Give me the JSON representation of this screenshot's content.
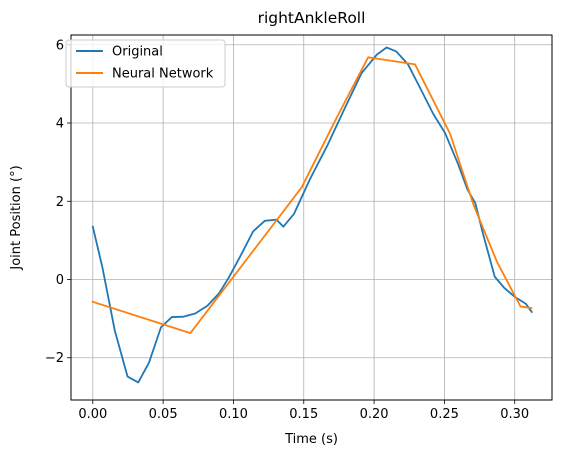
{
  "chart_data": {
    "type": "line",
    "title": "rightAnkleRoll",
    "xlabel": "Time (s)",
    "ylabel": "Joint Position (°)",
    "xlim": [
      -0.0155,
      0.3265
    ],
    "ylim": [
      -3.08,
      6.25
    ],
    "xticks": [
      0.0,
      0.05,
      0.1,
      0.15,
      0.2,
      0.25,
      0.3
    ],
    "xtick_labels": [
      "0.00",
      "0.05",
      "0.10",
      "0.15",
      "0.20",
      "0.25",
      "0.30"
    ],
    "yticks": [
      -2,
      0,
      2,
      4,
      6
    ],
    "ytick_labels": [
      "−2",
      "0",
      "2",
      "4",
      "6"
    ],
    "grid": true,
    "legend_position": "upper-left",
    "series": [
      {
        "name": "Original",
        "color": "#1f77b4",
        "x": [
          0.0,
          0.0069,
          0.0156,
          0.0247,
          0.0323,
          0.0399,
          0.0485,
          0.0562,
          0.0645,
          0.0728,
          0.0815,
          0.0898,
          0.0967,
          0.1057,
          0.114,
          0.1223,
          0.1306,
          0.1355,
          0.1431,
          0.1542,
          0.1667,
          0.1784,
          0.191,
          0.202,
          0.2089,
          0.2158,
          0.2241,
          0.2331,
          0.2421,
          0.2504,
          0.2595,
          0.2664,
          0.272,
          0.2775,
          0.2858,
          0.2927,
          0.3003,
          0.3079,
          0.3121
        ],
        "y": [
          1.35,
          0.3,
          -1.3,
          -2.48,
          -2.63,
          -2.13,
          -1.22,
          -0.96,
          -0.95,
          -0.87,
          -0.67,
          -0.35,
          0.05,
          0.65,
          1.23,
          1.5,
          1.53,
          1.35,
          1.68,
          2.55,
          3.42,
          4.32,
          5.27,
          5.75,
          5.93,
          5.83,
          5.5,
          4.87,
          4.23,
          3.75,
          2.97,
          2.3,
          1.95,
          1.16,
          0.07,
          -0.22,
          -0.45,
          -0.62,
          -0.83
        ]
      },
      {
        "name": "Neural Network",
        "color": "#ff7f0e",
        "x": [
          0.0,
          0.0694,
          0.1486,
          0.1736,
          0.1958,
          0.2291,
          0.2541,
          0.2708,
          0.2874,
          0.3041,
          0.3118
        ],
        "y": [
          -0.57,
          -1.37,
          2.36,
          4.15,
          5.68,
          5.5,
          3.72,
          1.9,
          0.45,
          -0.69,
          -0.73
        ]
      }
    ]
  }
}
